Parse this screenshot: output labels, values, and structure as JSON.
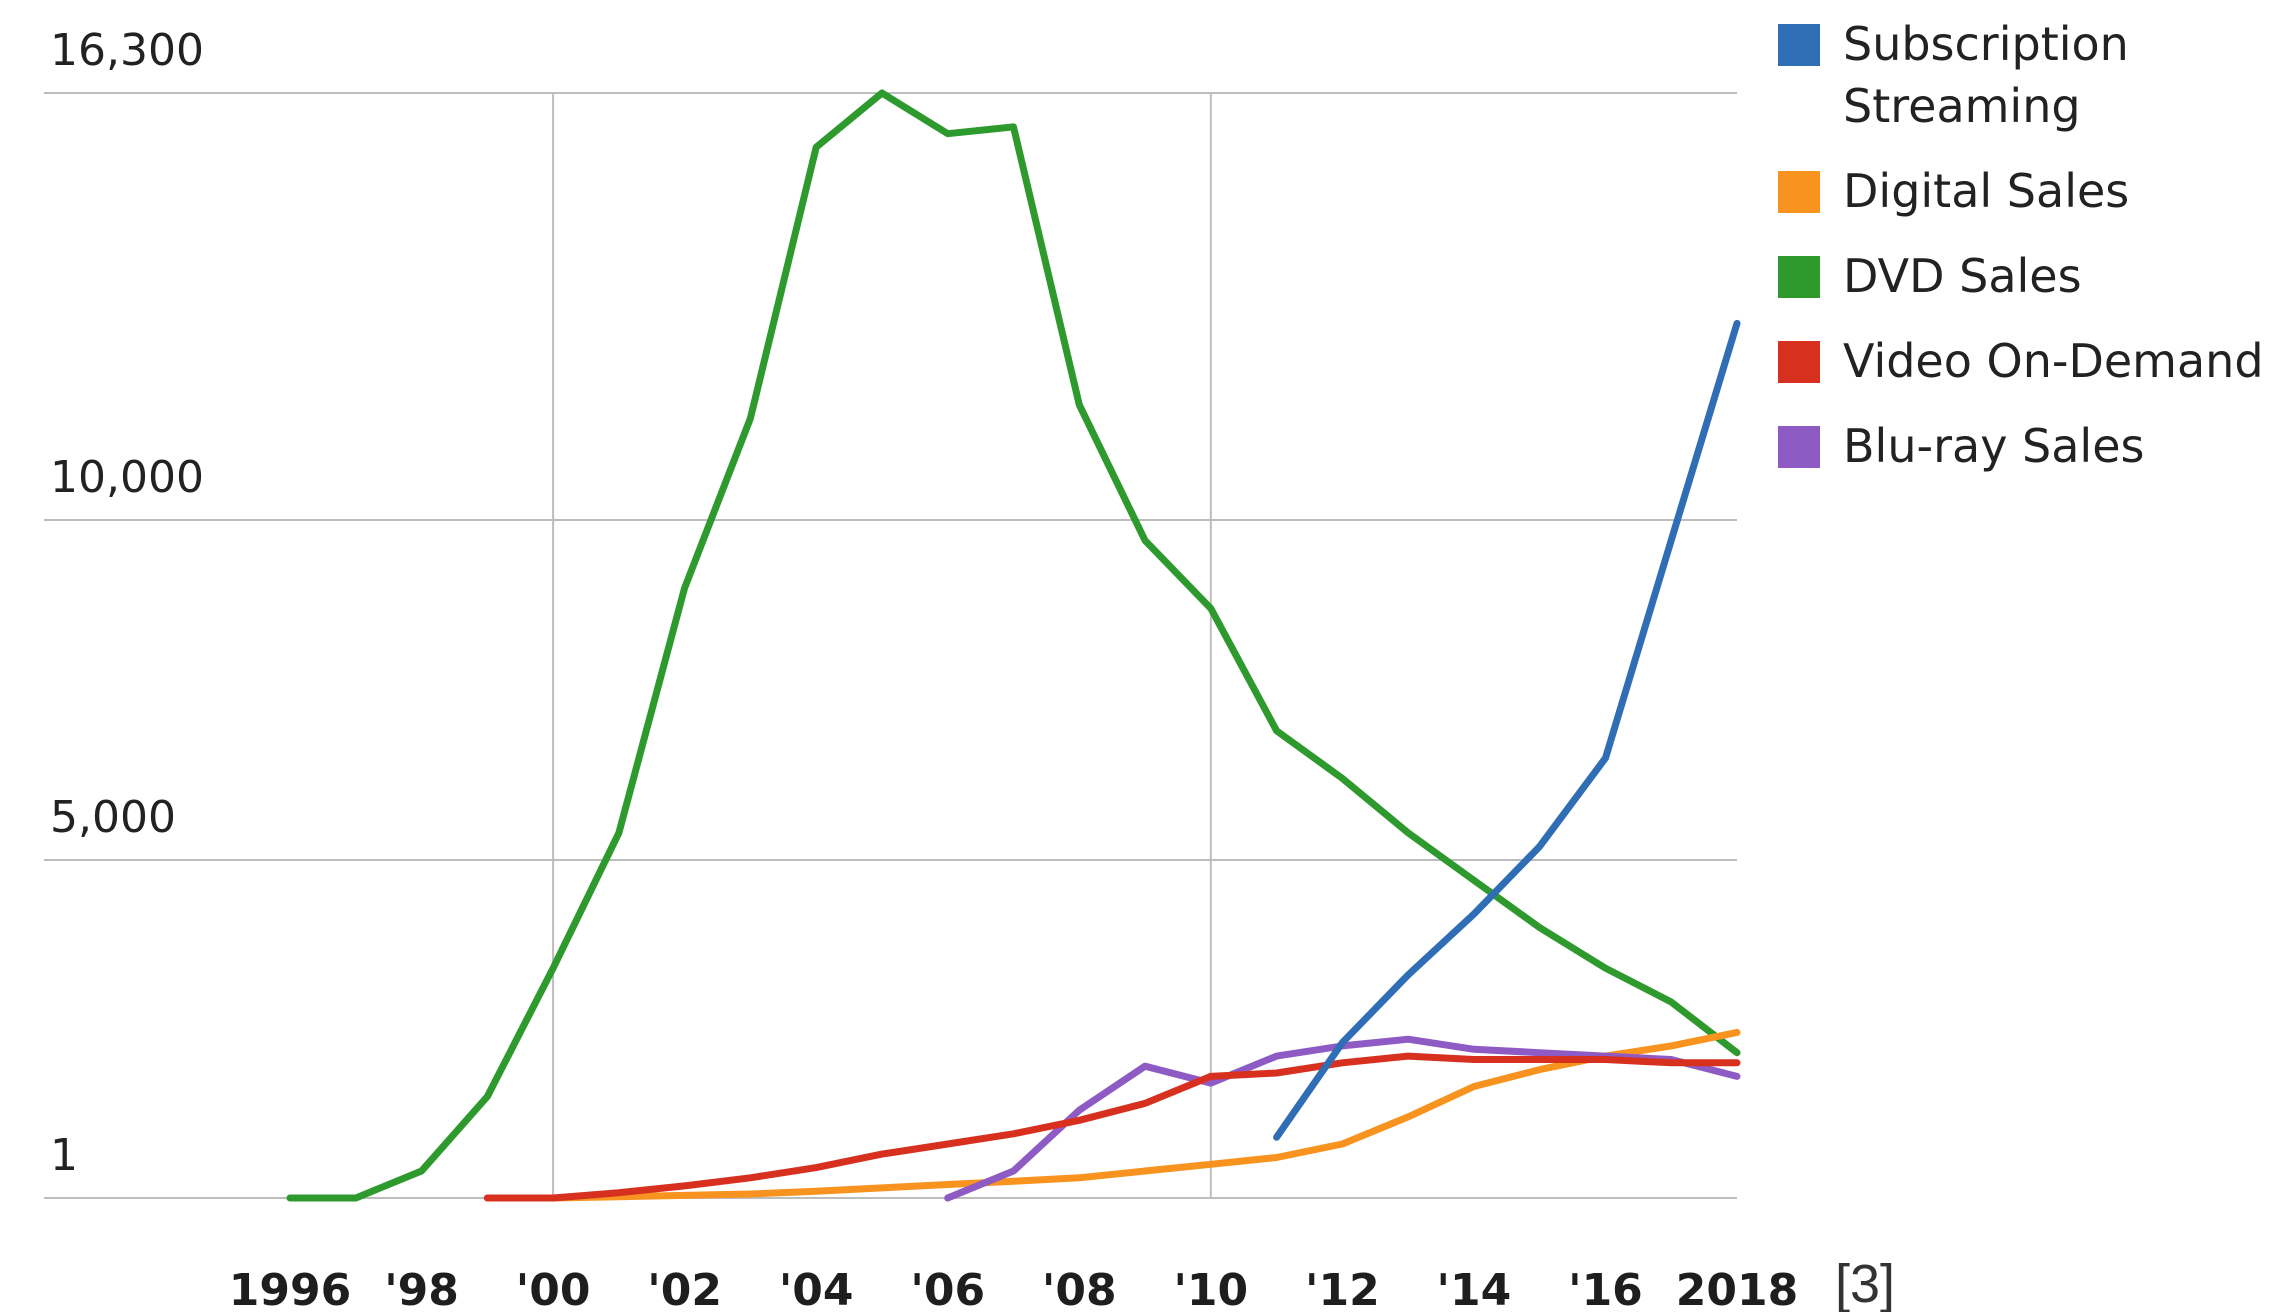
{
  "chart_data": {
    "type": "line",
    "x": [
      1996,
      1997,
      1998,
      1999,
      2000,
      2001,
      2002,
      2003,
      2004,
      2005,
      2006,
      2007,
      2008,
      2009,
      2010,
      2011,
      2012,
      2013,
      2014,
      2015,
      2016,
      2017,
      2018
    ],
    "x_tick_values": [
      1996,
      1998,
      2000,
      2002,
      2004,
      2006,
      2008,
      2010,
      2012,
      2014,
      2016,
      2018
    ],
    "x_tick_labels": [
      "1996",
      "'98",
      "'00",
      "'02",
      "'04",
      "'06",
      "'08",
      "'10",
      "'12",
      "'14",
      "'16",
      "2018"
    ],
    "y_tick_values": [
      1,
      5000,
      10000,
      16300
    ],
    "y_tick_labels": [
      "1",
      "5,000",
      "10,000",
      "16,300"
    ],
    "xlim": [
      1996,
      2018
    ],
    "ylim": [
      1,
      16300
    ],
    "grid": true,
    "legend_position": "top-right",
    "title": "",
    "xlabel": "",
    "ylabel": "",
    "footnote": "[3]",
    "series": [
      {
        "name": "Subscription Streaming",
        "color": "#2f6db5",
        "x": [
          2011,
          2012,
          2013,
          2014,
          2015,
          2016,
          2017,
          2018
        ],
        "values": [
          900,
          2300,
          3300,
          4200,
          5200,
          6500,
          9700,
          12900
        ]
      },
      {
        "name": "Digital Sales",
        "color": "#f7931e",
        "x": [
          2000,
          2001,
          2002,
          2003,
          2004,
          2005,
          2006,
          2007,
          2008,
          2009,
          2010,
          2011,
          2012,
          2013,
          2014,
          2015,
          2016,
          2017,
          2018
        ],
        "values": [
          1,
          20,
          40,
          60,
          100,
          150,
          200,
          250,
          300,
          400,
          500,
          600,
          800,
          1200,
          1650,
          1900,
          2100,
          2250,
          2450
        ]
      },
      {
        "name": "DVD Sales",
        "color": "#2e9a2e",
        "x": [
          1996,
          1997,
          1998,
          1999,
          2000,
          2001,
          2002,
          2003,
          2004,
          2005,
          2006,
          2007,
          2008,
          2009,
          2010,
          2011,
          2012,
          2013,
          2014,
          2015,
          2016,
          2017,
          2018
        ],
        "values": [
          1,
          1,
          400,
          1500,
          3400,
          5400,
          9000,
          11500,
          15500,
          16300,
          15700,
          15800,
          11700,
          9700,
          8700,
          6900,
          6200,
          5400,
          4700,
          4000,
          3400,
          2900,
          2150
        ]
      },
      {
        "name": "Video On-Demand",
        "color": "#d7301f",
        "x": [
          1999,
          2000,
          2001,
          2002,
          2003,
          2004,
          2005,
          2006,
          2007,
          2008,
          2009,
          2010,
          2011,
          2012,
          2013,
          2014,
          2015,
          2016,
          2017,
          2018
        ],
        "values": [
          1,
          1,
          80,
          180,
          300,
          450,
          650,
          800,
          950,
          1150,
          1400,
          1800,
          1850,
          2000,
          2100,
          2050,
          2050,
          2050,
          2000,
          2000
        ]
      },
      {
        "name": "Blu-ray Sales",
        "color": "#8e5bc5",
        "x": [
          2006,
          2007,
          2008,
          2009,
          2010,
          2011,
          2012,
          2013,
          2014,
          2015,
          2016,
          2017,
          2018
        ],
        "values": [
          1,
          400,
          1300,
          1950,
          1700,
          2100,
          2250,
          2350,
          2200,
          2150,
          2100,
          2050,
          1800
        ]
      }
    ]
  }
}
